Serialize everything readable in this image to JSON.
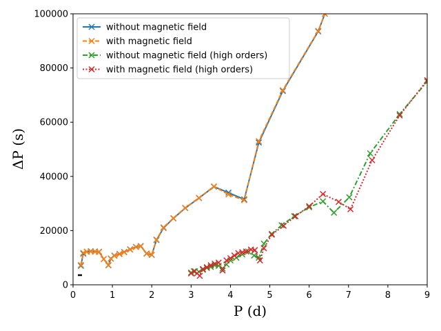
{
  "chart_data": {
    "type": "line",
    "title": "",
    "xlabel": "P (d)",
    "ylabel": "ΔP (s)",
    "xlim": [
      0,
      9
    ],
    "ylim": [
      0,
      100000
    ],
    "x_ticks": [
      0,
      1,
      2,
      3,
      4,
      5,
      6,
      7,
      8,
      9
    ],
    "y_ticks": [
      0,
      20000,
      40000,
      60000,
      80000,
      100000
    ],
    "grid": false,
    "legend_position": "top-left",
    "series": [
      {
        "name": "without magnetic field",
        "color": "#1f77b4",
        "linestyle": "solid",
        "marker": "x",
        "x": [
          0.2,
          0.26,
          0.35,
          0.45,
          0.56,
          0.66,
          0.78,
          0.9,
          0.96,
          1.05,
          1.18,
          1.3,
          1.45,
          1.6,
          1.72,
          1.87,
          2.0,
          2.12,
          2.3,
          2.55,
          2.85,
          3.2,
          3.58,
          3.95,
          4.35,
          4.72,
          5.33,
          6.23,
          6.4
        ],
        "y": [
          7000,
          11500,
          12200,
          12400,
          12300,
          12200,
          9500,
          7200,
          9700,
          10800,
          11400,
          12100,
          13100,
          14000,
          14300,
          11500,
          11000,
          16500,
          21000,
          24500,
          28300,
          32000,
          36200,
          34000,
          31500,
          52500,
          71500,
          93500,
          100000
        ]
      },
      {
        "name": "with magnetic field",
        "color": "#ff7f0e",
        "linestyle": "dashed",
        "marker": "x",
        "x": [
          0.2,
          0.26,
          0.35,
          0.45,
          0.56,
          0.66,
          0.78,
          0.9,
          0.96,
          1.05,
          1.18,
          1.3,
          1.45,
          1.6,
          1.72,
          1.87,
          2.0,
          2.12,
          2.3,
          2.55,
          2.85,
          3.2,
          3.58,
          3.95,
          4.35,
          4.72,
          5.33,
          6.23,
          6.4
        ],
        "y": [
          7300,
          11800,
          12200,
          12300,
          12200,
          12100,
          9500,
          7300,
          9600,
          10700,
          11300,
          12000,
          13000,
          13900,
          14200,
          11600,
          11100,
          16700,
          21200,
          24600,
          28400,
          32100,
          36300,
          33300,
          31200,
          53000,
          71800,
          93700,
          100000
        ]
      },
      {
        "name": "without magnetic field (high orders)",
        "color": "#2ca02c",
        "linestyle": "dashdot",
        "marker": "x",
        "x": [
          3.0,
          3.1,
          3.2,
          3.3,
          3.4,
          3.5,
          3.6,
          3.7,
          3.8,
          3.9,
          4.0,
          4.15,
          4.3,
          4.45,
          4.6,
          4.72,
          4.85,
          5.05,
          5.3,
          5.62,
          6.0,
          6.35,
          6.63,
          7.02,
          7.55,
          8.3,
          9.0
        ],
        "y": [
          4500,
          5000,
          4800,
          5500,
          6200,
          6600,
          7200,
          7000,
          6000,
          7500,
          9000,
          10000,
          11200,
          12300,
          10800,
          10000,
          15200,
          18800,
          22000,
          25300,
          28600,
          30800,
          26600,
          32300,
          48500,
          63000,
          75000
        ]
      },
      {
        "name": "with magnetic field (high orders)",
        "color": "#d62728",
        "linestyle": "dotted",
        "marker": "x",
        "x": [
          3.0,
          3.07,
          3.15,
          3.22,
          3.3,
          3.4,
          3.5,
          3.6,
          3.7,
          3.8,
          3.9,
          4.0,
          4.1,
          4.2,
          4.3,
          4.4,
          4.52,
          4.62,
          4.75,
          4.85,
          5.05,
          5.35,
          5.65,
          6.0,
          6.35,
          6.75,
          7.05,
          7.6,
          8.3,
          9.0
        ],
        "y": [
          4200,
          5000,
          4200,
          3300,
          5800,
          6500,
          7200,
          7800,
          8200,
          5300,
          9000,
          9800,
          10800,
          11700,
          12000,
          12300,
          13000,
          12800,
          9000,
          13500,
          18500,
          21800,
          25300,
          29000,
          33500,
          30600,
          27900,
          46000,
          62500,
          75500
        ]
      }
    ]
  }
}
